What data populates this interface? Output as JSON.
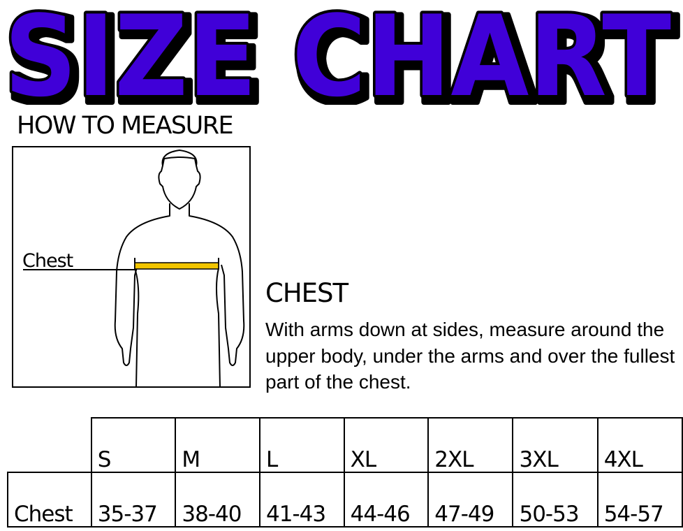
{
  "title": "SIZE CHART",
  "title_color": "#3f00d8",
  "how_to_measure": {
    "heading": "HOW TO MEASURE",
    "figure_label": "Chest",
    "tape_color": "#f2c500"
  },
  "chest": {
    "heading": "CHEST",
    "description": "With arms down at sides, measure around the upper body, under the arms and over the fullest part of the chest."
  },
  "size_table": {
    "sizes": [
      "S",
      "M",
      "L",
      "XL",
      "2XL",
      "3XL",
      "4XL"
    ],
    "rows": [
      {
        "label": "Chest",
        "values": [
          "35-37",
          "38-40",
          "41-43",
          "44-46",
          "47-49",
          "50-53",
          "54-57"
        ]
      }
    ]
  }
}
